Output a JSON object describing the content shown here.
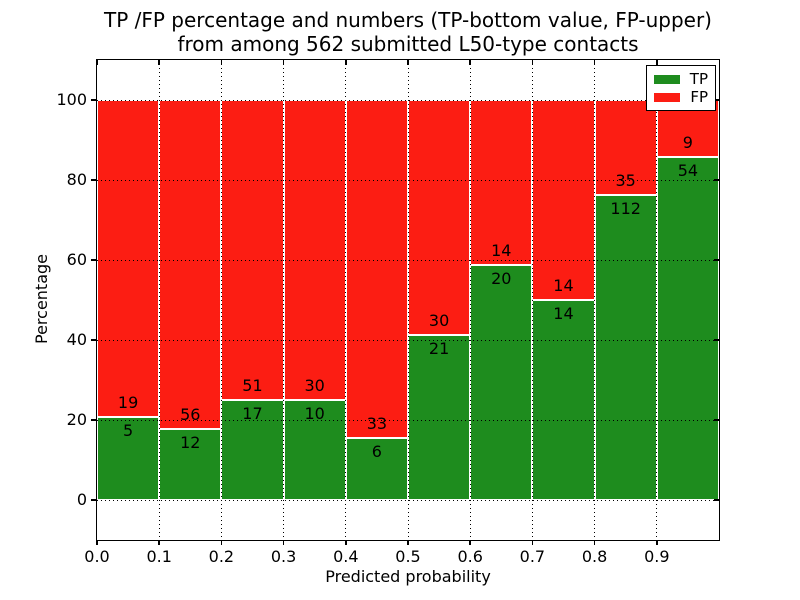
{
  "figure": {
    "title_line1": "TP /FP percentage and numbers (TP-bottom value, FP-upper)",
    "title_line2": "from among 562 submitted L50-type contacts",
    "xlabel": "Predicted probability",
    "ylabel": "Percentage"
  },
  "chart_data": {
    "type": "bar",
    "stacked": true,
    "normalized": "each bar scaled to 100%, split by TP fraction; labels show raw counts",
    "title": "TP /FP percentage and numbers (TP-bottom value, FP-upper) from among 562 submitted L50-type contacts",
    "xlabel": "Predicted probability",
    "ylabel": "Percentage",
    "total_contacts": 562,
    "x_bin_edges": [
      0.0,
      0.1,
      0.2,
      0.3,
      0.4,
      0.5,
      0.6,
      0.7,
      0.8,
      0.9,
      1.0
    ],
    "x_tick_labels": [
      "0.0",
      "0.1",
      "0.2",
      "0.3",
      "0.4",
      "0.5",
      "0.6",
      "0.7",
      "0.8",
      "0.9"
    ],
    "y_ticks": [
      0,
      20,
      40,
      60,
      80,
      100
    ],
    "xlim": [
      0.0,
      1.0
    ],
    "ylim": [
      -10,
      110
    ],
    "grid": true,
    "grid_style": "dotted black",
    "legend_position": "upper right",
    "series": [
      {
        "name": "TP",
        "color": "#1e8c1e",
        "values": [
          5,
          12,
          17,
          10,
          6,
          21,
          20,
          14,
          112,
          54
        ]
      },
      {
        "name": "FP",
        "color": "#fc1d13",
        "values": [
          19,
          56,
          51,
          30,
          33,
          30,
          14,
          14,
          35,
          9
        ]
      }
    ],
    "tp_percent_per_bin": [
      20.8,
      17.6,
      25.0,
      25.0,
      15.4,
      41.2,
      58.8,
      50.0,
      76.2,
      85.7
    ],
    "colors": {
      "background": "#ffffff",
      "text": "#000000",
      "spine": "#000000",
      "bar_edge": "#ffffff"
    }
  }
}
